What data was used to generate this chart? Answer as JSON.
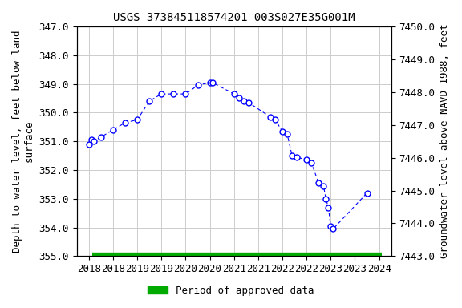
{
  "title": "USGS 373845118574201 003S027E35G001M",
  "ylabel_left": "Depth to water level, feet below land\nsurface",
  "ylabel_right": "Groundwater level above NAVD 1988, feet",
  "ylim_left": [
    355.0,
    347.0
  ],
  "ylim_right": [
    7443.0,
    7450.0
  ],
  "yticks_left": [
    347.0,
    348.0,
    349.0,
    350.0,
    351.0,
    352.0,
    353.0,
    354.0,
    355.0
  ],
  "yticks_right": [
    7443.0,
    7444.0,
    7445.0,
    7446.0,
    7447.0,
    7448.0,
    7449.0,
    7450.0
  ],
  "xlim": [
    2017.75,
    2024.25
  ],
  "xticks_pos": [
    2018,
    2018.5,
    2019,
    2019.5,
    2020,
    2020.5,
    2021,
    2021.5,
    2022,
    2022.5,
    2023,
    2023.5,
    2024
  ],
  "xtick_labels": [
    "2018",
    "2018",
    "2019",
    "2019",
    "2020",
    "2020",
    "2021",
    "2021",
    "2022",
    "2022",
    "2023",
    "2023",
    "2024"
  ],
  "data_x": [
    2018.0,
    2018.05,
    2018.1,
    2018.25,
    2018.5,
    2018.75,
    2019.0,
    2019.25,
    2019.5,
    2019.75,
    2020.0,
    2020.25,
    2020.5,
    2020.55,
    2021.0,
    2021.1,
    2021.2,
    2021.3,
    2021.75,
    2021.85,
    2022.0,
    2022.1,
    2022.2,
    2022.3,
    2022.5,
    2022.6,
    2022.75,
    2022.85,
    2022.9,
    2022.95,
    2023.0,
    2023.05,
    2023.75
  ],
  "data_y": [
    351.1,
    350.95,
    351.0,
    350.85,
    350.6,
    350.35,
    350.25,
    349.6,
    349.35,
    349.35,
    349.35,
    349.05,
    348.95,
    348.95,
    349.35,
    349.5,
    349.6,
    349.65,
    350.15,
    350.25,
    350.65,
    350.75,
    351.5,
    351.55,
    351.65,
    351.75,
    352.45,
    352.55,
    353.0,
    353.3,
    353.95,
    354.05,
    352.8
  ],
  "line_color": "#0000ff",
  "marker_color": "#0000ff",
  "legend_label": "Period of approved data",
  "legend_color": "#00aa00",
  "background_color": "#ffffff",
  "grid_color": "#cccccc",
  "title_fontsize": 10,
  "axis_label_fontsize": 9,
  "tick_fontsize": 9
}
